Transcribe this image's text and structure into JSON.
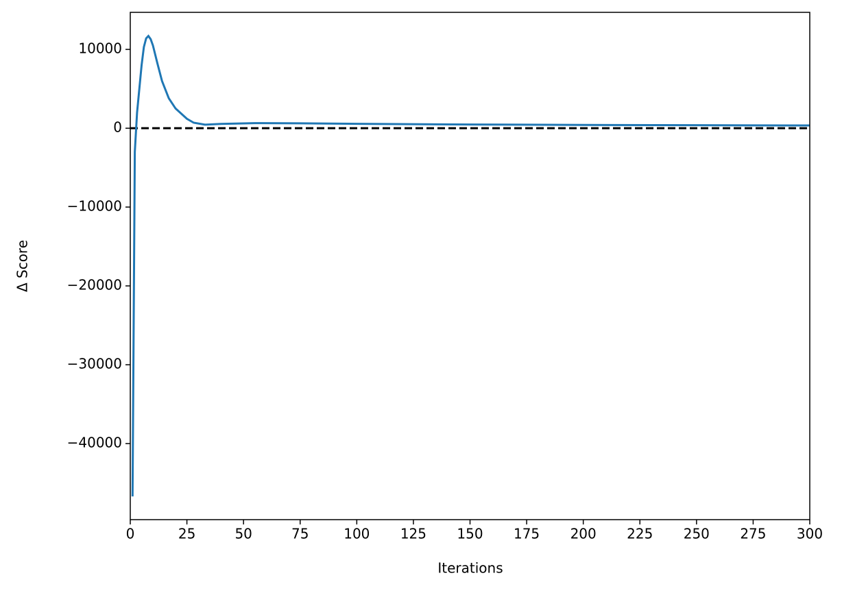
{
  "chart_data": {
    "type": "line",
    "xlabel": "Iterations",
    "ylabel": "Δ Score",
    "x": [
      1,
      2,
      3,
      4,
      5,
      6,
      7,
      8,
      9,
      10,
      12,
      14,
      17,
      20,
      25,
      28,
      33,
      40,
      55,
      75,
      100,
      150,
      200,
      250,
      300
    ],
    "values": [
      -46700,
      -3000,
      2000,
      5000,
      8000,
      10300,
      11400,
      11700,
      11300,
      10500,
      8200,
      6000,
      3800,
      2500,
      1200,
      700,
      450,
      550,
      650,
      620,
      560,
      470,
      420,
      380,
      350
    ],
    "color": "#1f77b4",
    "reference_line": {
      "y": 0,
      "color": "#000000",
      "style": "dashed"
    },
    "xlim": [
      0,
      300
    ],
    "xticks": [
      0,
      25,
      50,
      75,
      100,
      125,
      150,
      175,
      200,
      225,
      250,
      275,
      300
    ],
    "ylim": [
      -49650,
      14700
    ],
    "yticks": [
      {
        "value": -40000,
        "label": "−40000"
      },
      {
        "value": -30000,
        "label": "−30000"
      },
      {
        "value": -20000,
        "label": "−20000"
      },
      {
        "value": -10000,
        "label": "−10000"
      },
      0,
      10000
    ],
    "grid": false
  }
}
